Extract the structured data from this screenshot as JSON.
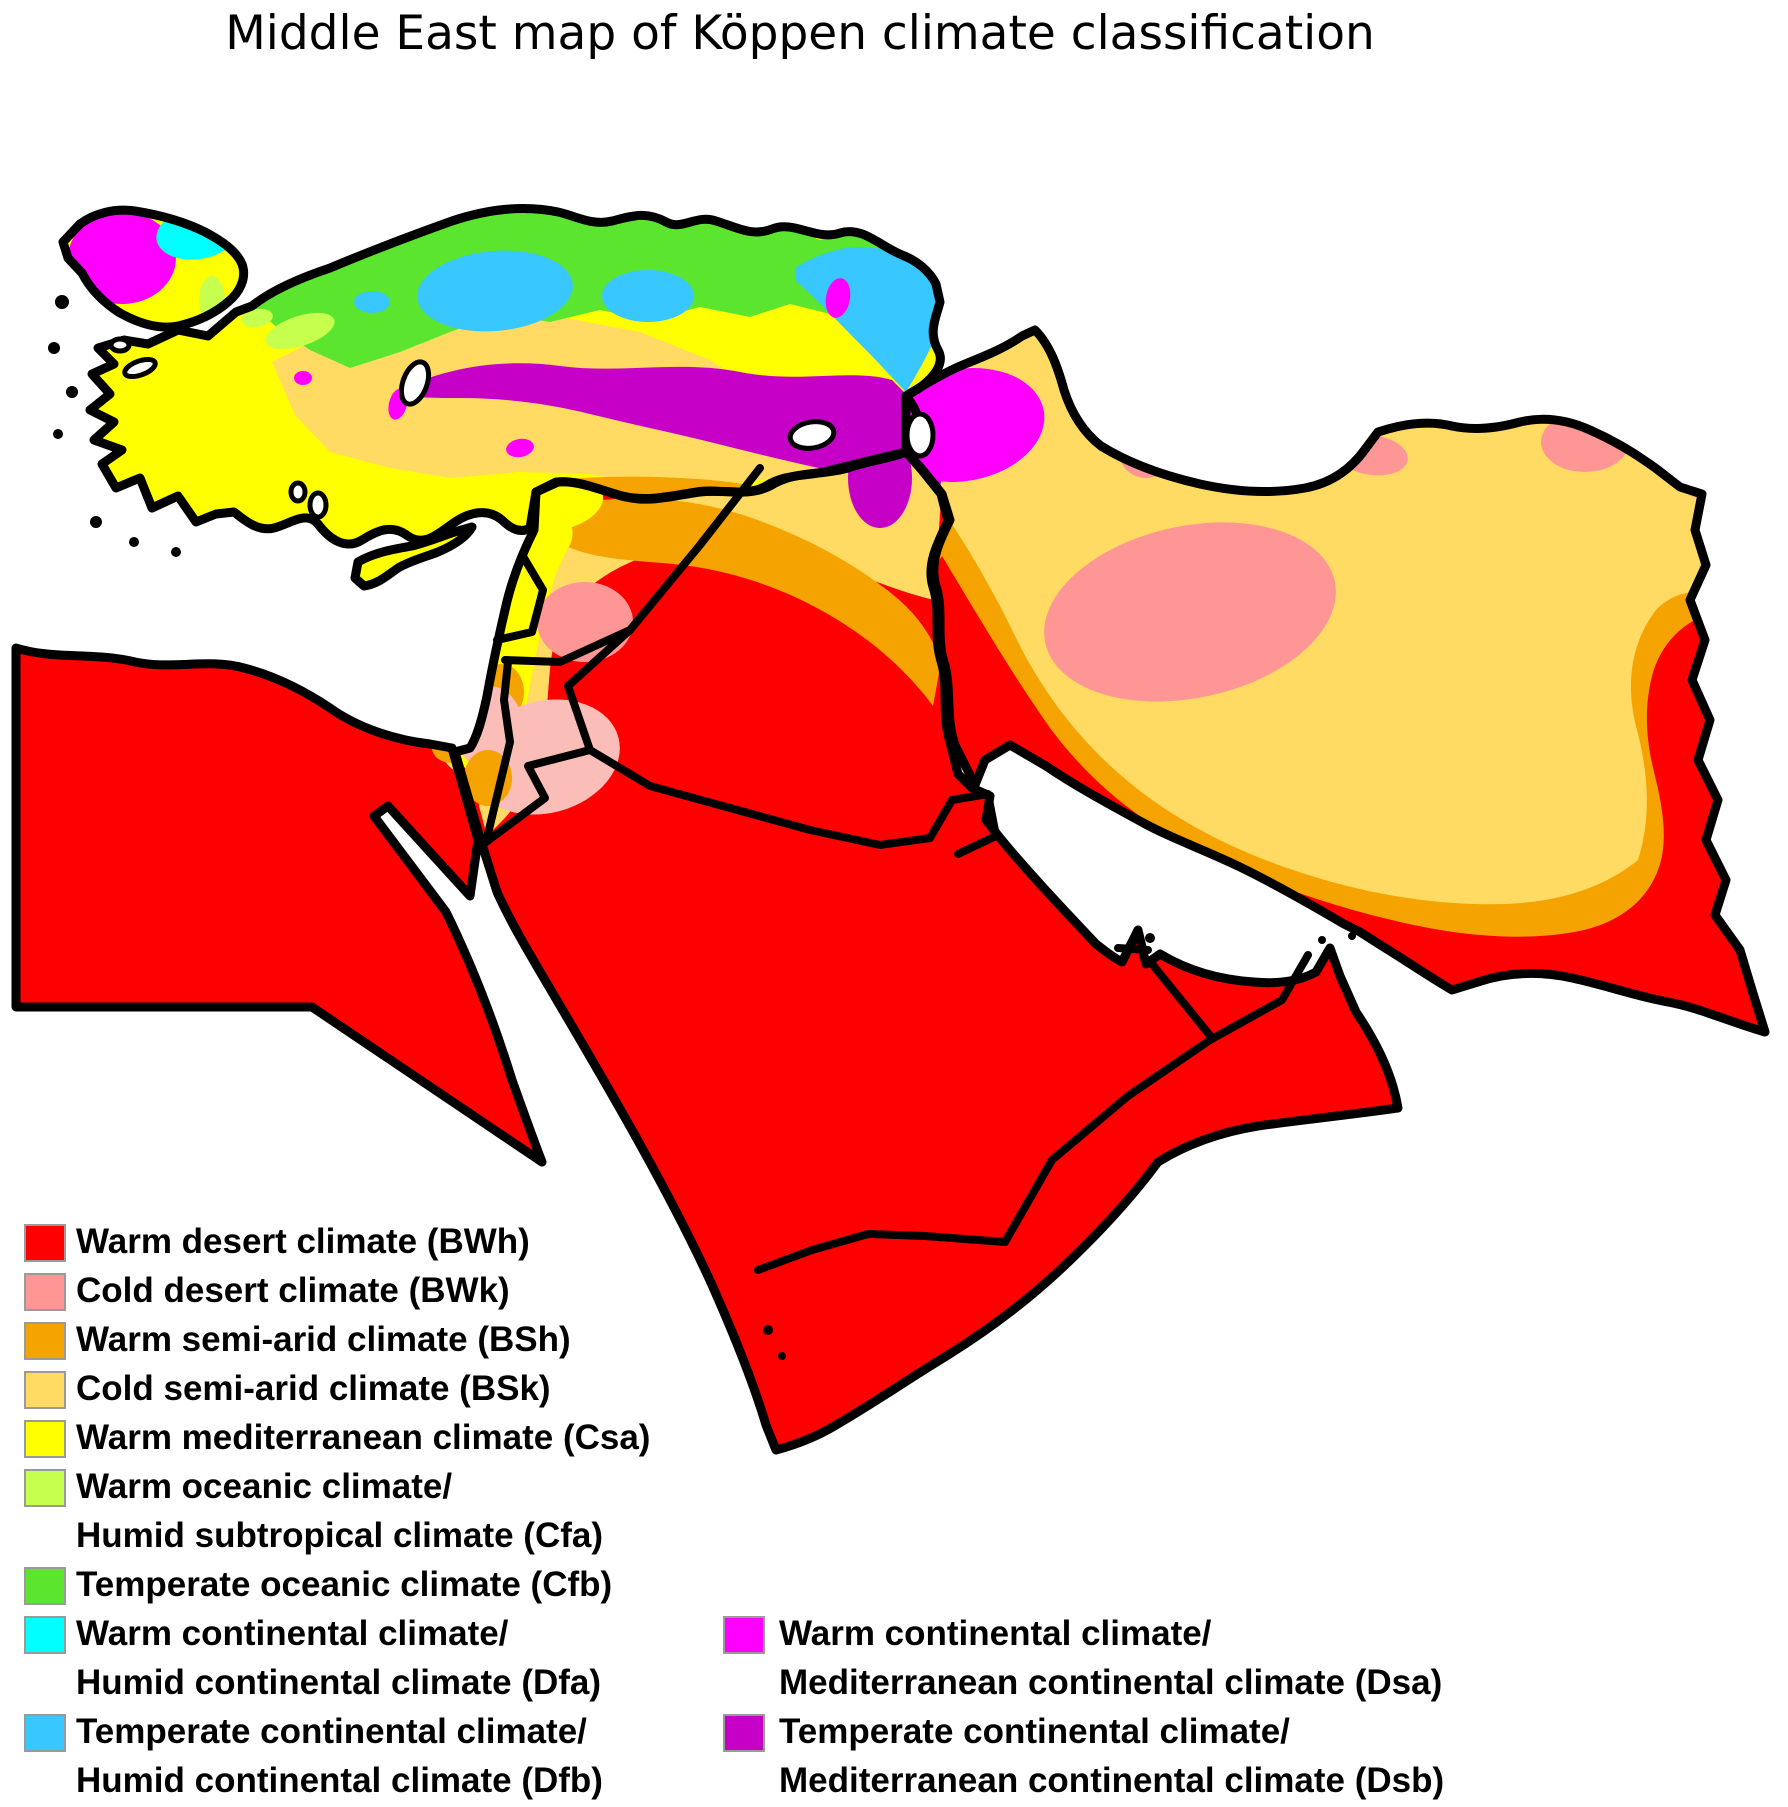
{
  "title": "Middle East map of Köppen climate classification",
  "colors": {
    "BWh": "#FE0000",
    "BWk": "#FE9695",
    "BWk_light": "#FBBDB8",
    "BSh": "#F5A301",
    "BSk": "#FFDB63",
    "Csa": "#FFFF00",
    "Cfa": "#C6FF4E",
    "Cfb": "#5BE52E",
    "Dfa": "#00FFFF",
    "Dfb": "#38C7FF",
    "Dsa": "#FF00FE",
    "Dsb": "#C600C7",
    "outline": "#000000",
    "water": "#FFFFFF",
    "text": "#000000",
    "swatch_border": "#9A9A9A"
  },
  "legend": {
    "left": [
      {
        "code": "BWh",
        "lines": [
          "Warm desert climate (BWh)"
        ]
      },
      {
        "code": "BWk",
        "lines": [
          "Cold desert climate (BWk)"
        ]
      },
      {
        "code": "BSh",
        "lines": [
          "Warm semi-arid climate (BSh)"
        ]
      },
      {
        "code": "BSk",
        "lines": [
          "Cold semi-arid climate (BSk)"
        ]
      },
      {
        "code": "Csa",
        "lines": [
          "Warm mediterranean climate (Csa)"
        ]
      },
      {
        "code": "Cfa",
        "lines": [
          "Warm oceanic climate/",
          "Humid subtropical climate (Cfa)"
        ]
      },
      {
        "code": "Cfb",
        "lines": [
          "Temperate oceanic climate (Cfb)"
        ]
      },
      {
        "code": "Dfa",
        "lines": [
          "Warm continental climate/",
          "Humid continental climate (Dfa)"
        ]
      },
      {
        "code": "Dfb",
        "lines": [
          "Temperate continental climate/",
          "Humid continental climate (Dfb)"
        ]
      }
    ],
    "right": [
      {
        "code": "Dsa",
        "lines": [
          "Warm continental climate/",
          "Mediterranean continental climate (Dsa)"
        ]
      },
      {
        "code": "Dsb",
        "lines": [
          "Temperate continental climate/",
          "Mediterranean continental climate (Dsb)"
        ]
      }
    ]
  }
}
